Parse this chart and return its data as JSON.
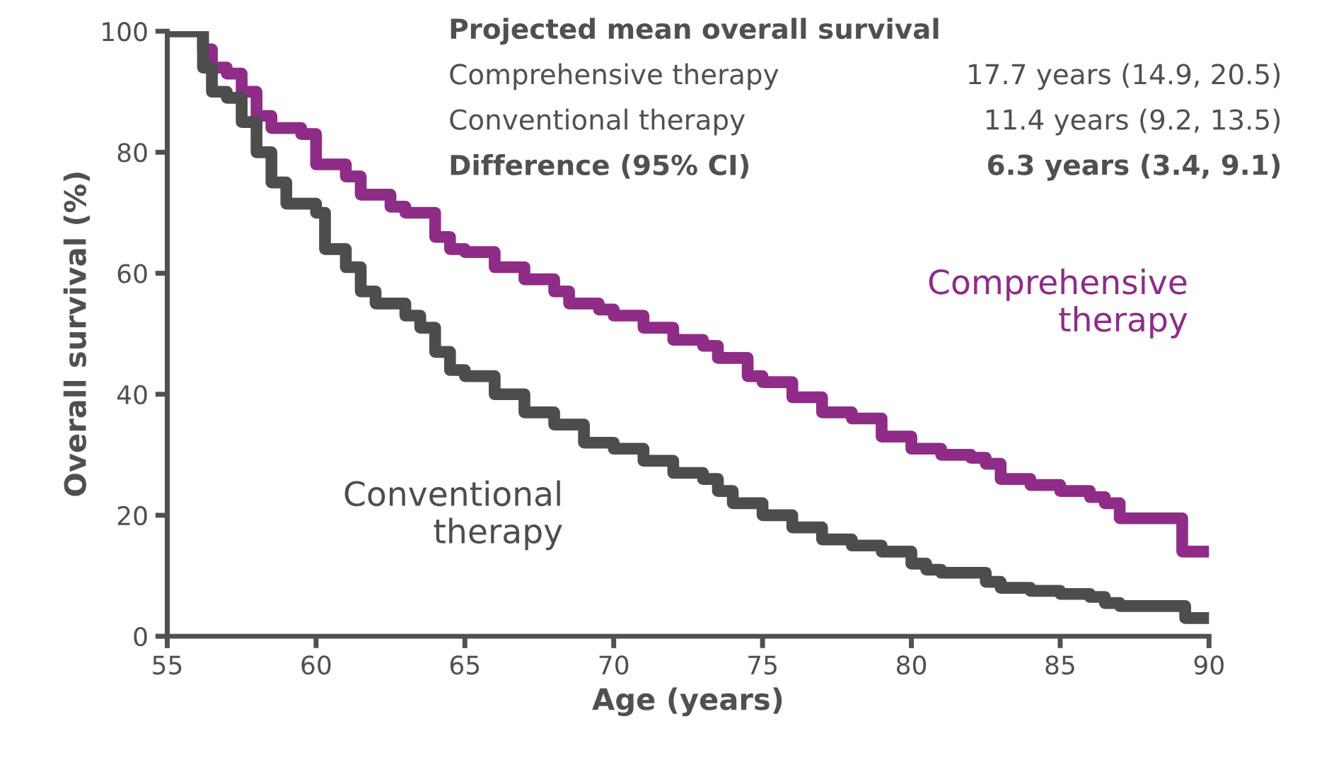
{
  "chart_data": {
    "type": "step",
    "xlabel": "Age (years)",
    "ylabel": "Overall survival (%)",
    "xlim": [
      55,
      90
    ],
    "xticks": [
      55,
      60,
      65,
      70,
      75,
      80,
      85,
      90
    ],
    "ylim": [
      0,
      100
    ],
    "yticks": [
      0,
      20,
      40,
      60,
      80,
      100
    ],
    "grid": false,
    "marker": "none",
    "line_style": "solid",
    "series": [
      {
        "name": "Comprehensive therapy",
        "color": "#8e2c88",
        "x": [
          55,
          56,
          56.2,
          56.5,
          57,
          57.5,
          58,
          58.5,
          59.5,
          60,
          61,
          61.5,
          62.5,
          63,
          64,
          64.5,
          65,
          66,
          67,
          68,
          68.5,
          69.5,
          70,
          71,
          72,
          73,
          73.5,
          74.5,
          75,
          76,
          77,
          78,
          79,
          80,
          81,
          82,
          82.5,
          83,
          84,
          85,
          86,
          86.5,
          87,
          89,
          89.1,
          90
        ],
        "values": [
          100,
          100,
          97,
          94,
          93,
          90,
          86,
          84,
          83,
          78,
          76,
          73,
          71,
          70,
          66,
          64,
          63.5,
          61,
          59,
          57,
          55,
          54,
          53,
          51,
          49,
          48,
          46,
          43,
          42,
          39.5,
          37,
          36,
          33,
          31,
          30,
          29.5,
          28.5,
          26,
          25,
          24,
          23,
          22,
          19.5,
          19.5,
          14,
          14
        ]
      },
      {
        "name": "Conventional therapy",
        "color": "#4d4d4d",
        "x": [
          55,
          56,
          56.2,
          56.5,
          57,
          57.5,
          58,
          58.5,
          59,
          60,
          60.3,
          61,
          61.5,
          62,
          63,
          63.5,
          64,
          64.5,
          65,
          66,
          67,
          68,
          69,
          70,
          71,
          72,
          73,
          73.5,
          74,
          75,
          76,
          77,
          78,
          79,
          80,
          80.5,
          81,
          82,
          82.5,
          83,
          84,
          85,
          86,
          86.5,
          87,
          88,
          89,
          89.2,
          90
        ],
        "values": [
          100,
          100,
          94,
          90,
          89,
          85,
          80,
          75,
          71.5,
          70,
          64,
          61,
          57,
          55,
          53,
          51,
          47,
          44,
          43,
          40,
          37,
          35,
          32,
          31,
          29,
          27,
          26,
          24,
          22,
          20,
          18,
          16,
          15,
          14,
          12,
          11,
          10.5,
          10.5,
          9,
          8,
          7.5,
          7,
          6.5,
          5.5,
          5,
          5,
          5,
          3,
          3
        ]
      }
    ],
    "annotations": [
      "Projected mean overall survival",
      "Comprehensive therapy",
      "17.7 years (14.9, 20.5)",
      "Conventional therapy",
      "11.4 years (9.2, 13.5)",
      "Difference (95% CI)",
      "6.3 years (3.4, 9.1)"
    ]
  }
}
